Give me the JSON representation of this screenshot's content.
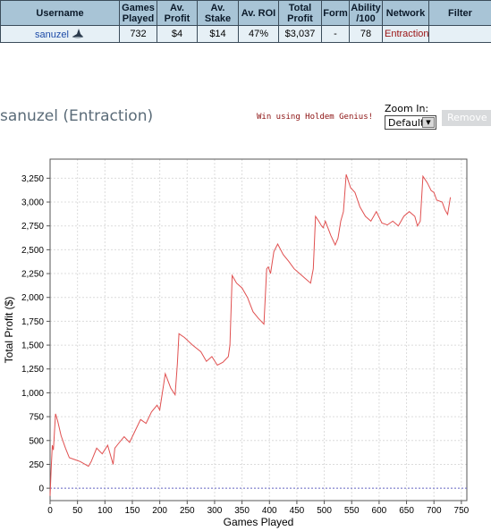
{
  "table": {
    "headers": [
      "Username",
      "Games Played",
      "Av. Profit",
      "Av. Stake",
      "Av. ROI",
      "Total Profit",
      "Form",
      "Ability /100",
      "Network",
      "Filter"
    ],
    "row": {
      "username": "sanuzel",
      "games_played": "732",
      "av_profit": "$4",
      "av_stake": "$14",
      "av_roi": "47%",
      "total_profit": "$3,037",
      "form": "-",
      "ability": "78",
      "network": "Entraction",
      "filter": ""
    }
  },
  "header": {
    "title": "sanuzel (Entraction)",
    "promo_link": "Win using Holdem Genius!",
    "zoom_label": "Zoom In:",
    "zoom_value": "Default",
    "remove_label": "Remove"
  },
  "colors": {
    "header_bg": "#a8c4d6",
    "row_bg": "#e6f0f6",
    "line": "#e05050",
    "zero_line": "#6a6ac8"
  },
  "chart_data": {
    "type": "line",
    "xlabel": "Games Played",
    "ylabel": "Total Profit ($)",
    "xlim": [
      0,
      760
    ],
    "ylim": [
      -130,
      3450
    ],
    "x_ticks": [
      0,
      50,
      100,
      150,
      200,
      250,
      300,
      350,
      400,
      450,
      500,
      550,
      600,
      650,
      700,
      750
    ],
    "y_ticks": [
      0,
      250,
      500,
      750,
      1000,
      1250,
      1500,
      1750,
      2000,
      2250,
      2500,
      2750,
      3000,
      3250
    ],
    "y_tick_labels": [
      "0",
      "250",
      "500",
      "750",
      "1,000",
      "1,250",
      "1,500",
      "1,750",
      "2,000",
      "2,250",
      "2,500",
      "2,750",
      "3,000",
      "3,250"
    ],
    "grid": true,
    "series": [
      {
        "x": [
          0,
          2,
          4,
          6,
          10,
          14,
          20,
          28,
          35,
          45,
          55,
          70,
          75,
          85,
          95,
          105,
          115,
          118,
          125,
          135,
          145,
          155,
          165,
          175,
          185,
          195,
          200,
          210,
          220,
          228,
          232,
          235,
          245,
          260,
          275,
          285,
          295,
          305,
          315,
          320,
          325,
          328,
          332,
          340,
          350,
          360,
          370,
          380,
          390,
          395,
          398,
          402,
          408,
          415,
          425,
          435,
          445,
          455,
          465,
          475,
          480,
          484,
          490,
          495,
          498,
          502,
          512,
          520,
          525,
          530,
          535,
          540,
          548,
          556,
          565,
          575,
          585,
          595,
          605,
          615,
          625,
          635,
          645,
          655,
          665,
          670,
          675,
          680,
          688,
          695,
          700,
          705,
          715,
          720,
          725,
          730
        ],
        "y": [
          -80,
          200,
          450,
          400,
          780,
          700,
          550,
          420,
          320,
          300,
          280,
          230,
          280,
          420,
          360,
          450,
          250,
          420,
          470,
          540,
          480,
          600,
          720,
          680,
          800,
          870,
          820,
          1200,
          1050,
          980,
          1300,
          1620,
          1580,
          1500,
          1430,
          1330,
          1380,
          1290,
          1320,
          1350,
          1380,
          1500,
          2230,
          2150,
          2100,
          2000,
          1850,
          1780,
          1720,
          2300,
          2320,
          2250,
          2480,
          2560,
          2450,
          2380,
          2300,
          2250,
          2200,
          2150,
          2300,
          2850,
          2800,
          2750,
          2730,
          2800,
          2650,
          2550,
          2620,
          2800,
          2900,
          3290,
          3150,
          3100,
          2950,
          2850,
          2800,
          2900,
          2780,
          2760,
          2800,
          2750,
          2850,
          2900,
          2850,
          2750,
          2800,
          3270,
          3200,
          3120,
          3100,
          3020,
          3000,
          2920,
          2870,
          3050
        ]
      }
    ]
  }
}
